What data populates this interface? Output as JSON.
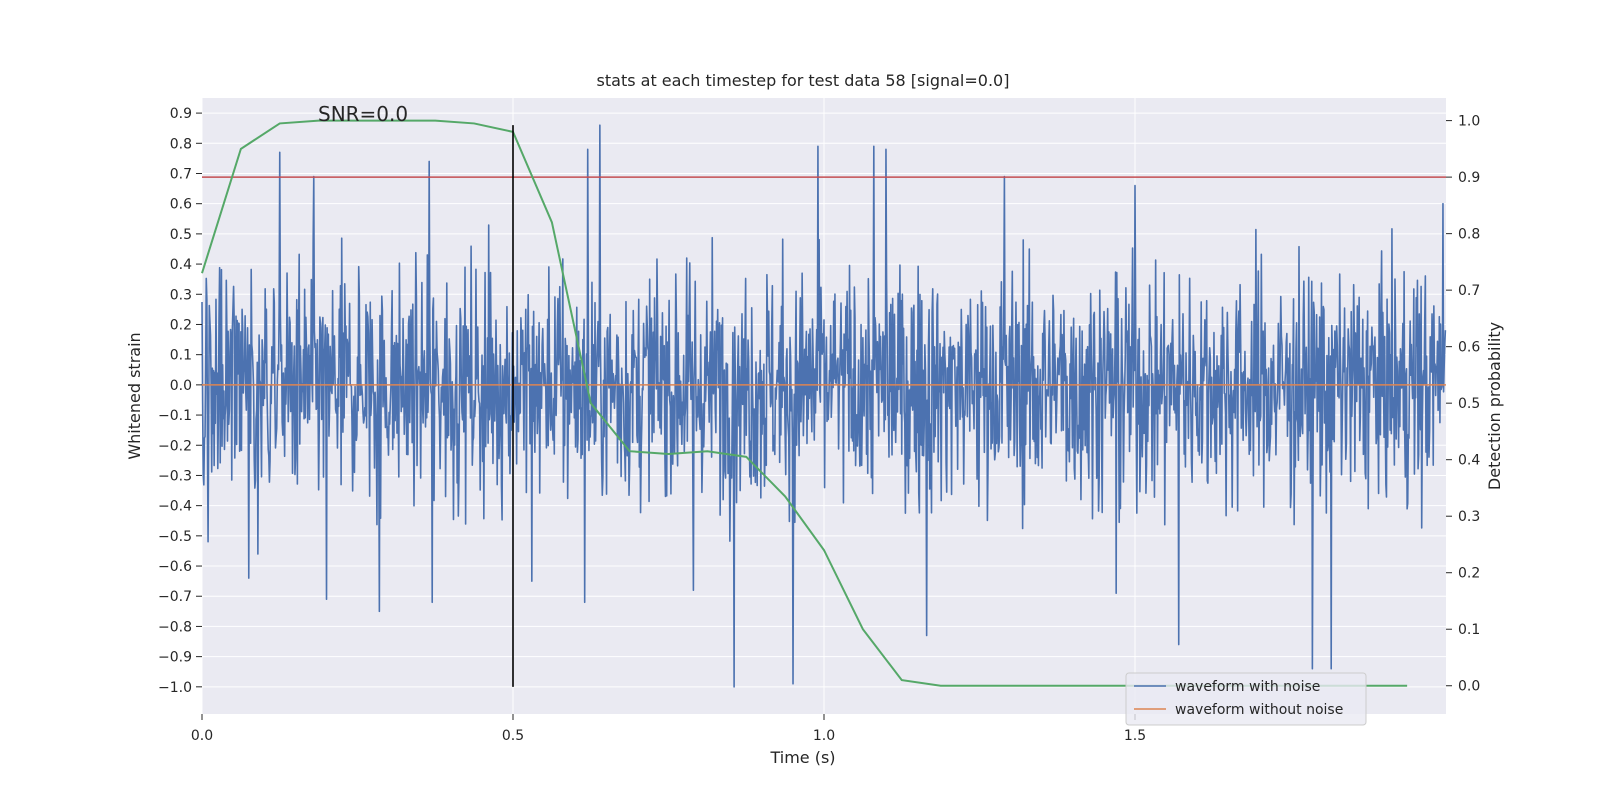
{
  "chart_data": {
    "type": "line",
    "title": "stats at each timestep for test data 58 [signal=0.0]",
    "xlabel": "Time (s)",
    "ylabel": "Whitened strain",
    "y2label": "Detection probability",
    "annotation": "SNR=0.0",
    "xlim": [
      0.0,
      2.0
    ],
    "ylim": [
      -1.09,
      0.95
    ],
    "y2lim": [
      -0.05,
      1.04
    ],
    "x_ticks": [
      0.0,
      0.5,
      1.0,
      1.5
    ],
    "x_tick_labels": [
      "0.0",
      "0.5",
      "1.0",
      "1.5"
    ],
    "y_ticks": [
      0.9,
      0.8,
      0.7,
      0.6,
      0.5,
      0.4,
      0.3,
      0.2,
      0.1,
      0.0,
      -0.1,
      -0.2,
      -0.3,
      -0.4,
      -0.5,
      -0.6,
      -0.7,
      -0.8,
      -0.9,
      -1.0
    ],
    "y_tick_labels": [
      "0.9",
      "0.8",
      "0.7",
      "0.6",
      "0.5",
      "0.4",
      "0.3",
      "0.2",
      "0.1",
      "0.0",
      "−0.1",
      "−0.2",
      "−0.3",
      "−0.4",
      "−0.5",
      "−0.6",
      "−0.7",
      "−0.8",
      "−0.9",
      "−1.0"
    ],
    "y2_ticks": [
      1.0,
      0.9,
      0.8,
      0.7,
      0.6,
      0.5,
      0.4,
      0.3,
      0.2,
      0.1,
      0.0
    ],
    "y2_tick_labels": [
      "1.0",
      "0.9",
      "0.8",
      "0.7",
      "0.6",
      "0.5",
      "0.4",
      "0.3",
      "0.2",
      "0.1",
      "0.0"
    ],
    "threshold_y2": 0.9,
    "vline_x": 0.5,
    "vline_ylim": [
      -1.0,
      0.86
    ],
    "noise_series": {
      "name": "waveform with noise",
      "color": "#4c72b0",
      "n_samples": 2048,
      "x_range": [
        0.0,
        2.0
      ],
      "typical_range": [
        -0.45,
        0.45
      ],
      "envelope_min": -1.0,
      "envelope_max": 0.86,
      "peaks": [
        [
          0.125,
          0.77
        ],
        [
          0.18,
          0.69
        ],
        [
          0.365,
          0.74
        ],
        [
          0.62,
          0.78
        ],
        [
          0.64,
          0.86
        ],
        [
          0.99,
          0.79
        ],
        [
          1.08,
          0.79
        ],
        [
          1.1,
          0.78
        ],
        [
          1.29,
          0.69
        ],
        [
          1.5,
          0.66
        ],
        [
          1.995,
          0.6
        ]
      ],
      "troughs": [
        [
          0.075,
          -0.64
        ],
        [
          0.09,
          -0.56
        ],
        [
          0.2,
          -0.71
        ],
        [
          0.285,
          -0.75
        ],
        [
          0.37,
          -0.72
        ],
        [
          0.53,
          -0.65
        ],
        [
          0.615,
          -0.72
        ],
        [
          0.79,
          -0.68
        ],
        [
          0.855,
          -1.0
        ],
        [
          0.95,
          -0.99
        ],
        [
          1.165,
          -0.83
        ],
        [
          1.47,
          -0.69
        ],
        [
          1.57,
          -0.86
        ],
        [
          1.785,
          -0.94
        ],
        [
          1.815,
          -0.94
        ]
      ]
    },
    "clean_series": {
      "name": "waveform without noise",
      "color": "#dd8452",
      "x": [
        0.0,
        2.0
      ],
      "y": [
        0.0,
        0.0
      ]
    },
    "probability_series": {
      "name": "Detection probability",
      "color": "#55a868",
      "x": [
        0.0,
        0.0625,
        0.125,
        0.1875,
        0.25,
        0.3125,
        0.375,
        0.4375,
        0.5,
        0.5625,
        0.625,
        0.6875,
        0.75,
        0.8125,
        0.875,
        0.9375,
        1.0,
        1.0625,
        1.125,
        1.1875,
        1.25,
        1.3125,
        1.375,
        1.4375,
        1.5,
        1.5625,
        1.625,
        1.6875,
        1.75,
        1.8125,
        1.875,
        1.9375
      ],
      "y": [
        0.73,
        0.95,
        0.995,
        1.0,
        1.0,
        1.0,
        1.0,
        0.995,
        0.98,
        0.82,
        0.5,
        0.415,
        0.41,
        0.415,
        0.405,
        0.335,
        0.24,
        0.1,
        0.01,
        0.0,
        0.0,
        0.0,
        0.0,
        0.0,
        0.0,
        0.0,
        0.0,
        0.0,
        0.0,
        0.0,
        0.0,
        0.0
      ]
    },
    "legend": {
      "position": "lower-right",
      "entries": [
        {
          "label": "waveform with noise",
          "color": "#4c72b0"
        },
        {
          "label": "waveform without noise",
          "color": "#dd8452"
        }
      ]
    },
    "colors": {
      "plot_background": "#eaeaf2",
      "grid": "#ffffff",
      "threshold": "#c44e52",
      "vline": "#000000"
    }
  }
}
